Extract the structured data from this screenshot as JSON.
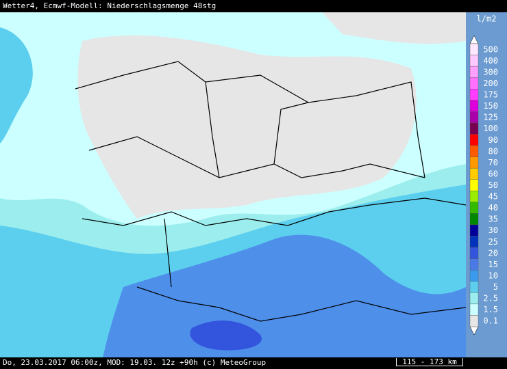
{
  "header": {
    "title": "Wetter4, Ecmwf-Modell: Niederschlagsmenge 48stg"
  },
  "legend": {
    "unit": "l/m2",
    "items": [
      {
        "label": "500",
        "color": "#ffe8ff"
      },
      {
        "label": "400",
        "color": "#ffc8ff"
      },
      {
        "label": "300",
        "color": "#ffa0ff"
      },
      {
        "label": "200",
        "color": "#ff70ff"
      },
      {
        "label": "175",
        "color": "#ff3cff"
      },
      {
        "label": "150",
        "color": "#dd00dd"
      },
      {
        "label": "125",
        "color": "#aa00aa"
      },
      {
        "label": "100",
        "color": "#770050"
      },
      {
        "label": "90",
        "color": "#ff0000"
      },
      {
        "label": "80",
        "color": "#ff5a00"
      },
      {
        "label": "70",
        "color": "#ff9900"
      },
      {
        "label": "60",
        "color": "#ffcc00"
      },
      {
        "label": "50",
        "color": "#ffff00"
      },
      {
        "label": "45",
        "color": "#99ee00"
      },
      {
        "label": "40",
        "color": "#33bb00"
      },
      {
        "label": "35",
        "color": "#008800"
      },
      {
        "label": "30",
        "color": "#000099"
      },
      {
        "label": "25",
        "color": "#0033bb"
      },
      {
        "label": "20",
        "color": "#3355dd"
      },
      {
        "label": "15",
        "color": "#4a7ae8"
      },
      {
        "label": "10",
        "color": "#3a9aee"
      },
      {
        "label": "5",
        "color": "#5ccfee"
      },
      {
        "label": "2.5",
        "color": "#9ceeee"
      },
      {
        "label": "1.5",
        "color": "#ccffff"
      },
      {
        "label": "0.1",
        "color": "#e6e6e6"
      }
    ]
  },
  "footer": {
    "text": "Do, 23.03.2017 06:00z, MOD: 19.03. 12z +90h (c) MeteoGroup",
    "scale": "115 - 173 km"
  }
}
